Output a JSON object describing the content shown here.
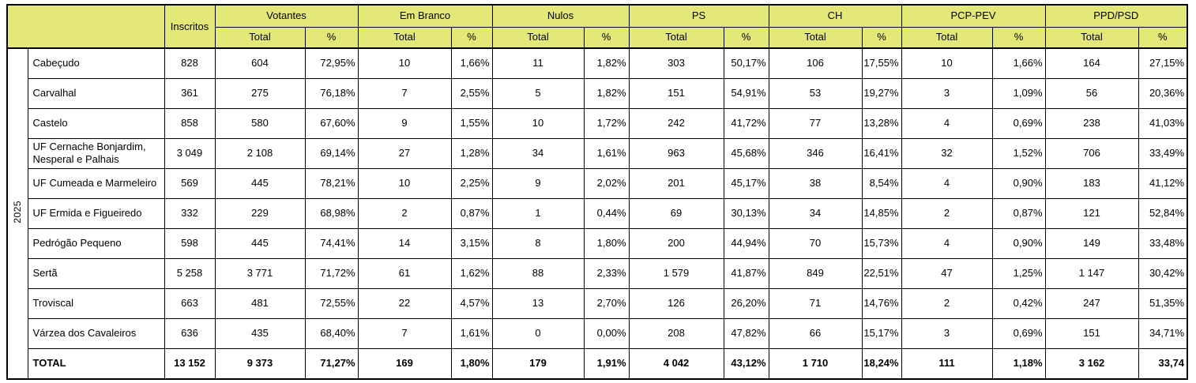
{
  "theme": {
    "header_bg": "#e4e878",
    "border_color": "#000000",
    "row_bg": "#ffffff"
  },
  "table": {
    "corner_label": "",
    "year_label": "2025",
    "inscritos_label": "Inscritos",
    "sub_total_label": "Total",
    "sub_pct_label": "%",
    "groups": [
      "Votantes",
      "Em Branco",
      "Nulos",
      "PS",
      "CH",
      "PCP-PEV",
      "PPD/PSD"
    ],
    "rows": [
      {
        "name": "Cabeçudo",
        "values": [
          "828",
          "604",
          "72,95%",
          "10",
          "1,66%",
          "11",
          "1,82%",
          "303",
          "50,17%",
          "106",
          "17,55%",
          "10",
          "1,66%",
          "164",
          "27,15%"
        ]
      },
      {
        "name": "Carvalhal",
        "values": [
          "361",
          "275",
          "76,18%",
          "7",
          "2,55%",
          "5",
          "1,82%",
          "151",
          "54,91%",
          "53",
          "19,27%",
          "3",
          "1,09%",
          "56",
          "20,36%"
        ]
      },
      {
        "name": "Castelo",
        "values": [
          "858",
          "580",
          "67,60%",
          "9",
          "1,55%",
          "10",
          "1,72%",
          "242",
          "41,72%",
          "77",
          "13,28%",
          "4",
          "0,69%",
          "238",
          "41,03%"
        ]
      },
      {
        "name": "UF Cernache Bonjardim, Nesperal e Palhais",
        "values": [
          "3 049",
          "2 108",
          "69,14%",
          "27",
          "1,28%",
          "34",
          "1,61%",
          "963",
          "45,68%",
          "346",
          "16,41%",
          "32",
          "1,52%",
          "706",
          "33,49%"
        ]
      },
      {
        "name": "UF Cumeada e Marmeleiro",
        "values": [
          "569",
          "445",
          "78,21%",
          "10",
          "2,25%",
          "9",
          "2,02%",
          "201",
          "45,17%",
          "38",
          "8,54%",
          "4",
          "0,90%",
          "183",
          "41,12%"
        ]
      },
      {
        "name": "UF Ermida e Figueiredo",
        "values": [
          "332",
          "229",
          "68,98%",
          "2",
          "0,87%",
          "1",
          "0,44%",
          "69",
          "30,13%",
          "34",
          "14,85%",
          "2",
          "0,87%",
          "121",
          "52,84%"
        ]
      },
      {
        "name": "Pedrógão Pequeno",
        "values": [
          "598",
          "445",
          "74,41%",
          "14",
          "3,15%",
          "8",
          "1,80%",
          "200",
          "44,94%",
          "70",
          "15,73%",
          "4",
          "0,90%",
          "149",
          "33,48%"
        ]
      },
      {
        "name": "Sertã",
        "values": [
          "5 258",
          "3 771",
          "71,72%",
          "61",
          "1,62%",
          "88",
          "2,33%",
          "1 579",
          "41,87%",
          "849",
          "22,51%",
          "47",
          "1,25%",
          "1 147",
          "30,42%"
        ]
      },
      {
        "name": "Troviscal",
        "values": [
          "663",
          "481",
          "72,55%",
          "22",
          "4,57%",
          "13",
          "2,70%",
          "126",
          "26,20%",
          "71",
          "14,76%",
          "2",
          "0,42%",
          "247",
          "51,35%"
        ]
      },
      {
        "name": "Várzea dos Cavaleiros",
        "values": [
          "636",
          "435",
          "68,40%",
          "7",
          "1,61%",
          "0",
          "0,00%",
          "208",
          "47,82%",
          "66",
          "15,17%",
          "3",
          "0,69%",
          "151",
          "34,71%"
        ]
      }
    ],
    "total_row": {
      "name": "TOTAL",
      "values": [
        "13 152",
        "9 373",
        "71,27%",
        "169",
        "1,80%",
        "179",
        "1,91%",
        "4 042",
        "43,12%",
        "1 710",
        "18,24%",
        "111",
        "1,18%",
        "3 162",
        "33,74"
      ]
    }
  }
}
